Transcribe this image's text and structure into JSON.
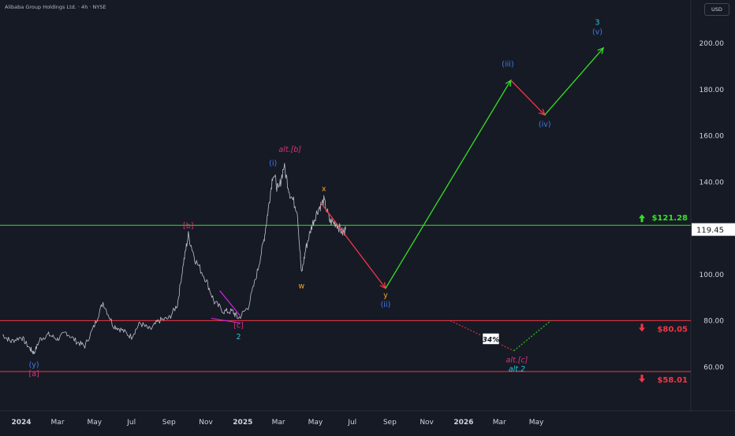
{
  "header": {
    "title": "Alibaba Group Holdings Ltd. · 4h · NYSE",
    "currency": "USD"
  },
  "chart_data": {
    "type": "line",
    "title": "Alibaba Group Holdings Ltd. · 4h · NYSE",
    "currency": "USD",
    "ylim": [
      40,
      215
    ],
    "y_ticks": [
      "200.00",
      "180.00",
      "160.00",
      "140.00",
      "120.00",
      "100.00",
      "80.00",
      "60.00"
    ],
    "y_tick_values": [
      200,
      180,
      160,
      140,
      120,
      100,
      80,
      60
    ],
    "x_ticks": [
      "2024",
      "Mar",
      "May",
      "Jul",
      "Sep",
      "Nov",
      "2025",
      "Mar",
      "May",
      "Jul",
      "Sep",
      "Nov",
      "2026",
      "Mar",
      "May"
    ],
    "x_tick_dates": [
      "2024-01-01",
      "2024-03-01",
      "2024-05-01",
      "2024-07-01",
      "2024-09-01",
      "2024-11-01",
      "2025-01-01",
      "2025-03-01",
      "2025-05-01",
      "2025-07-01",
      "2025-09-01",
      "2025-11-01",
      "2026-01-01",
      "2026-03-01",
      "2026-05-01"
    ],
    "price_series": {
      "name": "",
      "color": "#d1d4dc",
      "points": [
        [
          "2023-12-01",
          74
        ],
        [
          "2023-12-15",
          71
        ],
        [
          "2024-01-01",
          73
        ],
        [
          "2024-01-15",
          68
        ],
        [
          "2024-01-22",
          66
        ],
        [
          "2024-02-01",
          72
        ],
        [
          "2024-02-15",
          74
        ],
        [
          "2024-03-01",
          72
        ],
        [
          "2024-03-15",
          75
        ],
        [
          "2024-04-01",
          71
        ],
        [
          "2024-04-15",
          69
        ],
        [
          "2024-05-01",
          78
        ],
        [
          "2024-05-15",
          88
        ],
        [
          "2024-06-01",
          78
        ],
        [
          "2024-06-15",
          76
        ],
        [
          "2024-07-01",
          73
        ],
        [
          "2024-07-15",
          79
        ],
        [
          "2024-08-01",
          76
        ],
        [
          "2024-08-15",
          80
        ],
        [
          "2024-09-01",
          81
        ],
        [
          "2024-09-15",
          87
        ],
        [
          "2024-09-25",
          105
        ],
        [
          "2024-10-03",
          117
        ],
        [
          "2024-10-15",
          106
        ],
        [
          "2024-11-01",
          98
        ],
        [
          "2024-11-15",
          88
        ],
        [
          "2024-12-01",
          84
        ],
        [
          "2024-12-15",
          84
        ],
        [
          "2024-12-25",
          81
        ],
        [
          "2025-01-10",
          86
        ],
        [
          "2025-01-25",
          101
        ],
        [
          "2025-02-05",
          115
        ],
        [
          "2025-02-12",
          128
        ],
        [
          "2025-02-20",
          144
        ],
        [
          "2025-03-01",
          136
        ],
        [
          "2025-03-10",
          147
        ],
        [
          "2025-03-20",
          135
        ],
        [
          "2025-04-01",
          128
        ],
        [
          "2025-04-08",
          100
        ],
        [
          "2025-04-15",
          111
        ],
        [
          "2025-04-25",
          121
        ],
        [
          "2025-05-05",
          128
        ],
        [
          "2025-05-15",
          132
        ],
        [
          "2025-05-25",
          123
        ],
        [
          "2025-06-05",
          122
        ],
        [
          "2025-06-15",
          118
        ],
        [
          "2025-06-20",
          119.45
        ]
      ]
    },
    "levels": [
      {
        "value": 121.28,
        "label": "$121.28",
        "color": "#35e024",
        "arrow": "up"
      },
      {
        "value": 80.05,
        "label": "$80.05",
        "color": "#f23645",
        "arrow": "down"
      },
      {
        "value": 58.01,
        "label": "$58.01",
        "color": "#f23645",
        "arrow": "down"
      }
    ],
    "last_price": {
      "value": 119.45,
      "label": "119.45"
    },
    "projection": [
      {
        "from": [
          "2025-05-10",
          131
        ],
        "to": [
          "2025-08-25",
          94
        ],
        "color": "#f23645",
        "style": "solid"
      },
      {
        "from": [
          "2025-08-25",
          94
        ],
        "to": [
          "2026-03-20",
          184
        ],
        "color": "#35e024",
        "style": "solid"
      },
      {
        "from": [
          "2026-03-20",
          184
        ],
        "to": [
          "2026-05-15",
          169
        ],
        "color": "#f23645",
        "style": "solid"
      },
      {
        "from": [
          "2026-05-15",
          169
        ],
        "to": [
          "2026-08-20",
          198
        ],
        "color": "#35e024",
        "style": "solid"
      },
      {
        "from": [
          "2025-12-10",
          80
        ],
        "to": [
          "2026-03-25",
          67
        ],
        "color": "#f23645",
        "style": "dotted"
      },
      {
        "from": [
          "2026-03-25",
          67
        ],
        "to": [
          "2026-05-25",
          80
        ],
        "color": "#35e024",
        "style": "dotted"
      }
    ],
    "wedge": {
      "upper": [
        [
          "2024-11-24",
          93
        ],
        [
          "2024-12-28",
          82
        ]
      ],
      "lower": [
        [
          "2024-11-10",
          81
        ],
        [
          "2024-12-28",
          79
        ]
      ],
      "color": "#d422e6"
    },
    "annotations": [
      {
        "text": "(y)",
        "x": "2024-01-22",
        "y": 60,
        "color": "#3f7de8"
      },
      {
        "text": "[a]",
        "x": "2024-01-22",
        "y": 56,
        "color": "#d4357a"
      },
      {
        "text": "[b]",
        "x": "2024-10-03",
        "y": 120,
        "color": "#d4357a"
      },
      {
        "text": "[c]",
        "x": "2024-12-25",
        "y": 77,
        "color": "#d4357a"
      },
      {
        "text": "2",
        "x": "2024-12-25",
        "y": 72,
        "color": "#26c6da"
      },
      {
        "text": "(i)",
        "x": "2025-02-20",
        "y": 147,
        "color": "#3f7de8"
      },
      {
        "text": "alt.[b]",
        "x": "2025-03-20",
        "y": 153,
        "color": "#d4357a"
      },
      {
        "text": "x",
        "x": "2025-05-15",
        "y": 136,
        "color": "#f5a623"
      },
      {
        "text": "w",
        "x": "2025-04-08",
        "y": 94,
        "color": "#f5a623"
      },
      {
        "text": "y",
        "x": "2025-08-25",
        "y": 90,
        "color": "#f5a623"
      },
      {
        "text": "(ii)",
        "x": "2025-08-25",
        "y": 86,
        "color": "#3f7de8"
      },
      {
        "text": "(iii)",
        "x": "2026-03-15",
        "y": 190,
        "color": "#3f7de8"
      },
      {
        "text": "(iv)",
        "x": "2026-05-15",
        "y": 164,
        "color": "#3f7de8"
      },
      {
        "text": "3",
        "x": "2026-08-10",
        "y": 208,
        "color": "#26c6da"
      },
      {
        "text": "(v)",
        "x": "2026-08-10",
        "y": 204,
        "color": "#3f7de8"
      },
      {
        "text": "alt.[c]",
        "x": "2026-03-30",
        "y": 62,
        "color": "#d4357a"
      },
      {
        "text": "alt.2",
        "x": "2026-03-30",
        "y": 58,
        "color": "#26c6da"
      }
    ],
    "probability_badge": {
      "text": "34%",
      "x": "2026-02-15",
      "y": 72
    },
    "grid": false,
    "legend": "none"
  }
}
